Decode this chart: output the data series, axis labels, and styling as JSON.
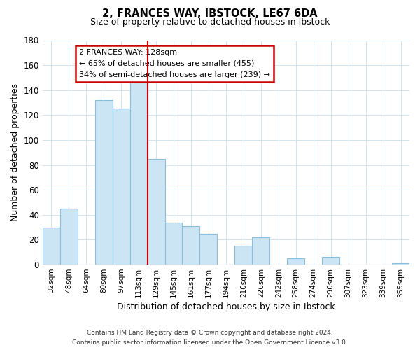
{
  "title": "2, FRANCES WAY, IBSTOCK, LE67 6DA",
  "subtitle": "Size of property relative to detached houses in Ibstock",
  "xlabel": "Distribution of detached houses by size in Ibstock",
  "ylabel": "Number of detached properties",
  "categories": [
    "32sqm",
    "48sqm",
    "64sqm",
    "80sqm",
    "97sqm",
    "113sqm",
    "129sqm",
    "145sqm",
    "161sqm",
    "177sqm",
    "194sqm",
    "210sqm",
    "226sqm",
    "242sqm",
    "258sqm",
    "274sqm",
    "290sqm",
    "307sqm",
    "323sqm",
    "339sqm",
    "355sqm"
  ],
  "values": [
    30,
    45,
    0,
    132,
    125,
    148,
    85,
    34,
    31,
    25,
    0,
    15,
    22,
    0,
    5,
    0,
    6,
    0,
    0,
    0,
    1
  ],
  "bar_color": "#cce5f5",
  "bar_edge_color": "#89bfde",
  "highlight_index": 5,
  "highlight_edge_color": "#cc0000",
  "red_line_index": 6,
  "annotation_title": "2 FRANCES WAY: 128sqm",
  "annotation_line1": "← 65% of detached houses are smaller (455)",
  "annotation_line2": "34% of semi-detached houses are larger (239) →",
  "annotation_box_color": "#ffffff",
  "annotation_box_edge_color": "#cc0000",
  "ylim": [
    0,
    180
  ],
  "yticks": [
    0,
    20,
    40,
    60,
    80,
    100,
    120,
    140,
    160,
    180
  ],
  "footer1": "Contains HM Land Registry data © Crown copyright and database right 2024.",
  "footer2": "Contains public sector information licensed under the Open Government Licence v3.0.",
  "background_color": "#ffffff",
  "grid_color": "#d0e4f0"
}
